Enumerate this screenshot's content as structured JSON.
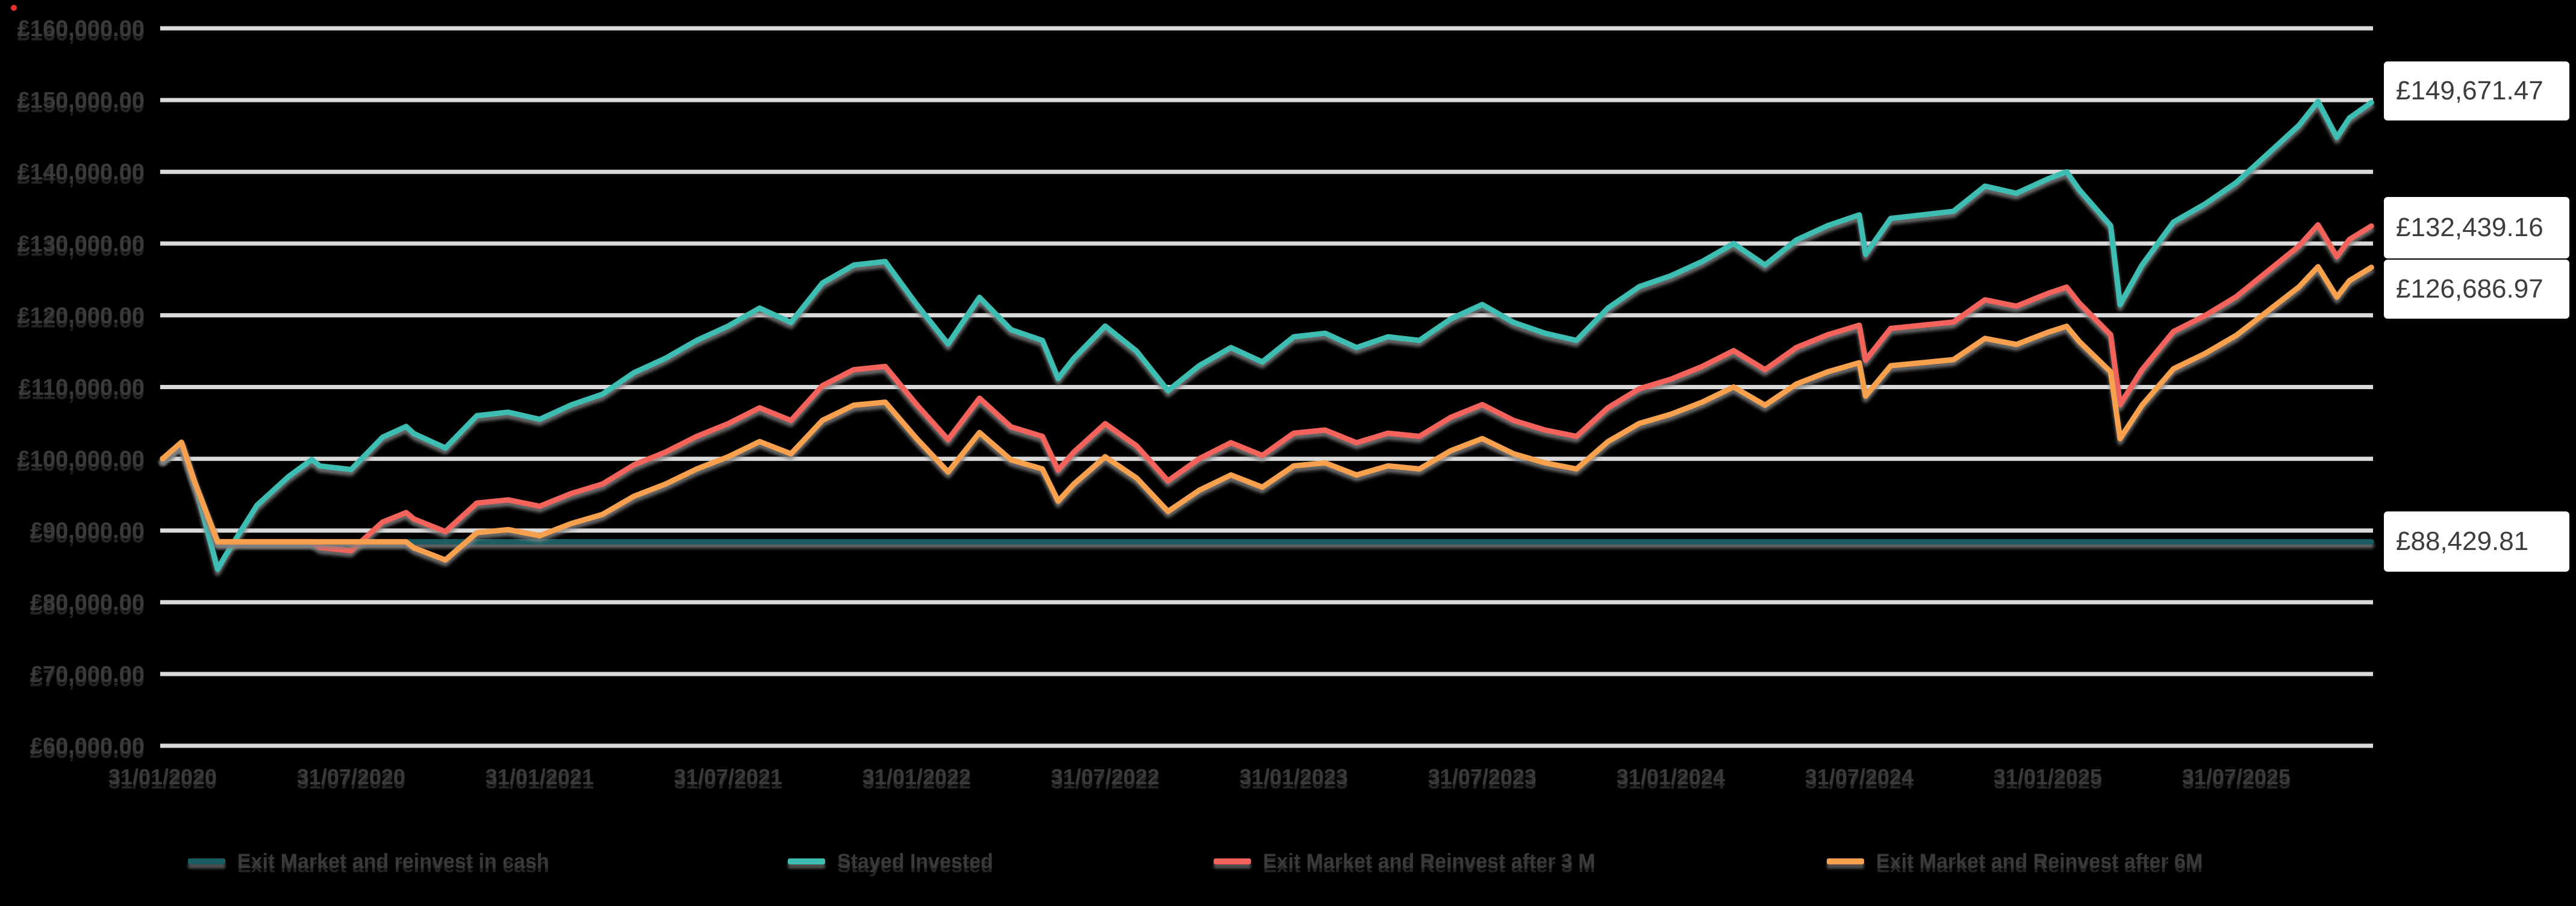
{
  "page": {
    "background": "#000000",
    "grid_color": "#DADADA",
    "axis_text_color": "#3A3A3A",
    "annotation_box_color": "#FFFFFF"
  },
  "chart_data": {
    "type": "line",
    "currency": "£",
    "title": "",
    "xlabel": "",
    "ylabel": "",
    "ylim": [
      60000,
      160000
    ],
    "grid": "horizontal",
    "legend_position": "bottom",
    "y_ticks": {
      "values": [
        160000,
        150000,
        140000,
        130000,
        120000,
        110000,
        100000,
        90000,
        80000,
        70000,
        60000
      ],
      "labels": [
        "£160,000.00",
        "£150,000.00",
        "£140,000.00",
        "£130,000.00",
        "£120,000.00",
        "£110,000.00",
        "£100,000.00",
        "£90,000.00",
        "£80,000.00",
        "£70,000.00",
        "£60,000.00"
      ]
    },
    "x_ticks": {
      "positions": [
        0,
        6,
        12,
        18,
        24,
        30,
        36,
        42,
        48,
        54,
        60,
        66
      ],
      "labels": [
        "31/01/2020",
        "31/07/2020",
        "31/01/2021",
        "31/07/2021",
        "31/01/2022",
        "31/07/2022",
        "31/01/2023",
        "31/07/2023",
        "31/01/2024",
        "31/07/2024",
        "31/01/2025",
        "31/07/2025"
      ]
    },
    "x_unit": "months since 31/01/2020",
    "x_domain": [
      0,
      70.3
    ],
    "x": [
      0,
      0.6,
      1,
      1.75,
      2,
      3,
      4,
      4.75,
      5,
      6,
      7,
      7.75,
      8,
      9,
      10,
      11,
      12,
      13,
      14,
      15,
      16,
      17,
      18,
      19,
      20,
      21,
      22,
      23,
      24,
      25,
      26,
      27,
      28,
      28.5,
      29,
      30,
      31,
      32,
      33,
      34,
      35,
      36,
      37,
      38,
      39,
      40,
      41,
      42,
      43,
      44,
      45,
      46,
      47,
      48,
      49,
      50,
      51,
      52,
      53,
      54,
      54.2,
      55,
      56,
      57,
      58,
      59,
      60,
      60.6,
      61,
      62,
      62.3,
      63,
      64,
      65,
      66,
      67,
      68,
      68.6,
      69.2,
      69.6,
      70.3
    ],
    "series": [
      {
        "name": "Exit Market and reinvest in cash",
        "color": "#1A5E63",
        "final_value": 88429.81,
        "values": [
          100000,
          102300,
          97000,
          88429.81,
          88429.81,
          88429.81,
          88429.81,
          88429.81,
          88429.81,
          88429.81,
          88429.81,
          88429.81,
          88429.81,
          88429.81,
          88429.81,
          88429.81,
          88429.81,
          88429.81,
          88429.81,
          88429.81,
          88429.81,
          88429.81,
          88429.81,
          88429.81,
          88429.81,
          88429.81,
          88429.81,
          88429.81,
          88429.81,
          88429.81,
          88429.81,
          88429.81,
          88429.81,
          88429.81,
          88429.81,
          88429.81,
          88429.81,
          88429.81,
          88429.81,
          88429.81,
          88429.81,
          88429.81,
          88429.81,
          88429.81,
          88429.81,
          88429.81,
          88429.81,
          88429.81,
          88429.81,
          88429.81,
          88429.81,
          88429.81,
          88429.81,
          88429.81,
          88429.81,
          88429.81,
          88429.81,
          88429.81,
          88429.81,
          88429.81,
          88429.81,
          88429.81,
          88429.81,
          88429.81,
          88429.81,
          88429.81,
          88429.81,
          88429.81,
          88429.81,
          88429.81,
          88429.81,
          88429.81,
          88429.81,
          88429.81,
          88429.81,
          88429.81,
          88429.81,
          88429.81,
          88429.81,
          88429.81,
          88429.81
        ]
      },
      {
        "name": "Stayed Invested",
        "color": "#3EBEB3",
        "final_value": 149671.47,
        "values": [
          100000,
          102300,
          97000,
          84600,
          86500,
          93500,
          97500,
          99900,
          99000,
          98500,
          103000,
          104500,
          103500,
          101500,
          106000,
          106500,
          105500,
          107500,
          109000,
          112000,
          114000,
          116500,
          118500,
          121000,
          119000,
          124500,
          127000,
          127500,
          121500,
          116000,
          122500,
          118000,
          116500,
          111200,
          114000,
          118500,
          115000,
          109500,
          113000,
          115500,
          113500,
          117000,
          117500,
          115500,
          117000,
          116500,
          119500,
          121500,
          119000,
          117500,
          116500,
          121000,
          124000,
          125500,
          127500,
          130000,
          127000,
          130500,
          132500,
          134000,
          128500,
          133500,
          134000,
          134500,
          138000,
          137000,
          139000,
          140000,
          137500,
          132500,
          121500,
          127000,
          133000,
          135500,
          138500,
          142500,
          146500,
          149800,
          144800,
          147500,
          149671.47
        ]
      },
      {
        "name": "Exit Market and Reinvest after 3 M",
        "color": "#F4625C",
        "final_value": 132439.16,
        "values": [
          100000,
          102300,
          97000,
          88429.81,
          88429.81,
          88429.81,
          88429.81,
          88429.81,
          87633,
          87190,
          91173,
          92501,
          91616,
          89846,
          93829,
          94272,
          93387,
          95157,
          96485,
          99140,
          100911,
          103123,
          104894,
          107107,
          105336,
          110205,
          112418,
          112860,
          107549,
          102681,
          108435,
          104451,
          103123,
          98432,
          100911,
          104894,
          101796,
          96927,
          100025,
          102238,
          100468,
          103566,
          104009,
          102238,
          103566,
          103123,
          105779,
          107549,
          105336,
          104009,
          103123,
          107107,
          109762,
          111090,
          112860,
          115073,
          112418,
          115516,
          117286,
          118614,
          113746,
          118172,
          118614,
          119057,
          122155,
          121270,
          123040,
          123925,
          121712,
          117286,
          107549,
          112418,
          117729,
          119942,
          122598,
          126138,
          129679,
          132600,
          128174,
          130564,
          132439.16
        ]
      },
      {
        "name": "Exit Market and Reinvest after 6M",
        "color": "#F7A04D",
        "final_value": 126686.97,
        "values": [
          100000,
          102300,
          97000,
          88429.81,
          88429.81,
          88429.81,
          88429.81,
          88429.81,
          88429.81,
          88429.81,
          88429.81,
          88429.81,
          87584,
          85891,
          89699,
          90122,
          89276,
          90969,
          92238,
          94777,
          96469,
          98585,
          100277,
          102393,
          100700,
          105354,
          107470,
          107893,
          102816,
          98162,
          103662,
          99854,
          98585,
          94100,
          96469,
          100277,
          97315,
          92661,
          95623,
          97738,
          96046,
          99008,
          99431,
          97738,
          99008,
          98585,
          101123,
          102816,
          100700,
          99431,
          98585,
          102393,
          104931,
          106201,
          107893,
          110009,
          107470,
          110432,
          112124,
          113394,
          108739,
          112970,
          113394,
          113817,
          116778,
          115932,
          117625,
          118471,
          116355,
          112124,
          102816,
          107470,
          112547,
          114663,
          117201,
          120586,
          123971,
          126764,
          122533,
          124818,
          126686.97
        ]
      }
    ],
    "annotations": [
      {
        "label": "£149,671.47",
        "value": 149671.47,
        "series": "Stayed Invested"
      },
      {
        "label": "£132,439.16",
        "value": 132439.16,
        "series": "Exit Market and Reinvest after 3 M"
      },
      {
        "label": "£126,686.97",
        "value": 126686.97,
        "series": "Exit Market and Reinvest after 6M"
      },
      {
        "label": "£88,429.81",
        "value": 88429.81,
        "series": "Exit Market and reinvest in cash"
      }
    ]
  }
}
